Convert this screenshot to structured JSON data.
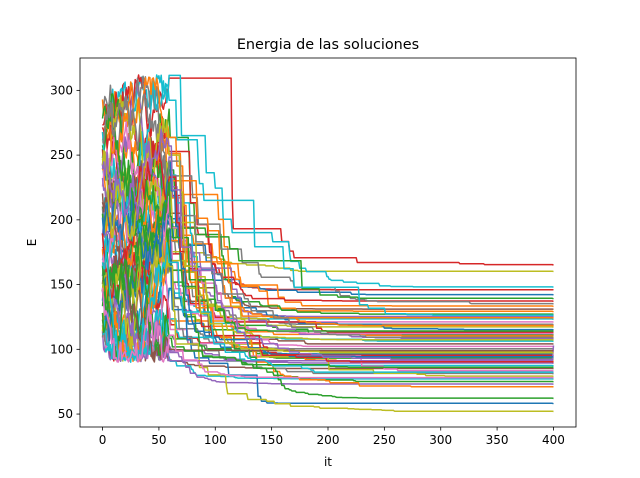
{
  "chart_data": {
    "type": "line",
    "title": "Energia de las soluciones",
    "xlabel": "it",
    "ylabel": "E",
    "xlim": [
      -20,
      420
    ],
    "ylim": [
      40,
      325
    ],
    "xticks": [
      0,
      50,
      100,
      150,
      200,
      250,
      300,
      350,
      400
    ],
    "yticks": [
      50,
      100,
      150,
      200,
      250,
      300
    ],
    "grid": false,
    "legend": "none",
    "n_iterations": 400,
    "palette": [
      "#1f77b4",
      "#ff7f0e",
      "#2ca02c",
      "#d62728",
      "#9467bd",
      "#8c564b",
      "#e377c2",
      "#7f7f7f",
      "#bcbd22",
      "#17becf"
    ],
    "series": [
      {
        "start": 288,
        "final": 165,
        "color": "#d62728"
      },
      {
        "start": 262,
        "final": 160,
        "color": "#bcbd22"
      },
      {
        "start": 240,
        "final": 148,
        "color": "#17becf"
      },
      {
        "start": 255,
        "final": 146,
        "color": "#d62728"
      },
      {
        "start": 230,
        "final": 142,
        "color": "#1f77b4"
      },
      {
        "start": 250,
        "final": 133,
        "color": "#ff7f0e"
      },
      {
        "start": 220,
        "final": 131,
        "color": "#8c564b"
      },
      {
        "start": 245,
        "final": 129,
        "color": "#ff7f0e"
      },
      {
        "start": 210,
        "final": 127,
        "color": "#2ca02c"
      },
      {
        "start": 235,
        "final": 125,
        "color": "#9467bd"
      },
      {
        "start": 200,
        "final": 123,
        "color": "#17becf"
      },
      {
        "start": 225,
        "final": 121,
        "color": "#e377c2"
      },
      {
        "start": 215,
        "final": 119,
        "color": "#7f7f7f"
      },
      {
        "start": 190,
        "final": 117,
        "color": "#bcbd22"
      },
      {
        "start": 205,
        "final": 115,
        "color": "#1f77b4"
      },
      {
        "start": 180,
        "final": 113,
        "color": "#d62728"
      },
      {
        "start": 195,
        "final": 111,
        "color": "#2ca02c"
      },
      {
        "start": 170,
        "final": 110,
        "color": "#ff7f0e"
      },
      {
        "start": 185,
        "final": 108,
        "color": "#9467bd"
      },
      {
        "start": 175,
        "final": 106,
        "color": "#17becf"
      },
      {
        "start": 165,
        "final": 104,
        "color": "#8c564b"
      },
      {
        "start": 160,
        "final": 102,
        "color": "#e377c2"
      },
      {
        "start": 150,
        "final": 100,
        "color": "#7f7f7f"
      },
      {
        "start": 155,
        "final": 98,
        "color": "#bcbd22"
      },
      {
        "start": 145,
        "final": 96,
        "color": "#1f77b4"
      },
      {
        "start": 140,
        "final": 95,
        "color": "#d62728"
      },
      {
        "start": 135,
        "final": 93,
        "color": "#2ca02c"
      },
      {
        "start": 130,
        "final": 91,
        "color": "#ff7f0e"
      },
      {
        "start": 125,
        "final": 89,
        "color": "#9467bd"
      },
      {
        "start": 120,
        "final": 87,
        "color": "#17becf"
      },
      {
        "start": 118,
        "final": 85,
        "color": "#8c564b"
      },
      {
        "start": 115,
        "final": 83,
        "color": "#e377c2"
      },
      {
        "start": 112,
        "final": 81,
        "color": "#7f7f7f"
      },
      {
        "start": 128,
        "final": 79,
        "color": "#bcbd22"
      },
      {
        "start": 122,
        "final": 77,
        "color": "#17becf"
      },
      {
        "start": 132,
        "final": 75,
        "color": "#2ca02c"
      },
      {
        "start": 138,
        "final": 73,
        "color": "#9467bd"
      },
      {
        "start": 142,
        "final": 71,
        "color": "#ff7f0e"
      },
      {
        "start": 148,
        "final": 62,
        "color": "#2ca02c"
      },
      {
        "start": 152,
        "final": 58,
        "color": "#1f77b4"
      },
      {
        "start": 158,
        "final": 52,
        "color": "#bcbd22"
      },
      {
        "start": 270,
        "final": 137,
        "color": "#d62728"
      },
      {
        "start": 275,
        "final": 135,
        "color": "#7f7f7f"
      },
      {
        "start": 265,
        "final": 139,
        "color": "#2ca02c"
      },
      {
        "start": 258,
        "final": 126,
        "color": "#17becf"
      },
      {
        "start": 248,
        "final": 118,
        "color": "#ff7f0e"
      },
      {
        "start": 238,
        "final": 112,
        "color": "#e377c2"
      },
      {
        "start": 228,
        "final": 107,
        "color": "#bcbd22"
      },
      {
        "start": 218,
        "final": 103,
        "color": "#9467bd"
      },
      {
        "start": 208,
        "final": 99,
        "color": "#8c564b"
      },
      {
        "start": 198,
        "final": 94,
        "color": "#1f77b4"
      },
      {
        "start": 188,
        "final": 90,
        "color": "#d62728"
      },
      {
        "start": 178,
        "final": 86,
        "color": "#2ca02c"
      },
      {
        "start": 168,
        "final": 82,
        "color": "#17becf"
      },
      {
        "start": 162,
        "final": 78,
        "color": "#e377c2"
      },
      {
        "start": 283,
        "final": 124,
        "color": "#ff7f0e"
      },
      {
        "start": 278,
        "final": 114,
        "color": "#2ca02c"
      },
      {
        "start": 260,
        "final": 109,
        "color": "#7f7f7f"
      },
      {
        "start": 244,
        "final": 97,
        "color": "#bcbd22"
      },
      {
        "start": 232,
        "final": 92,
        "color": "#9467bd"
      }
    ]
  }
}
